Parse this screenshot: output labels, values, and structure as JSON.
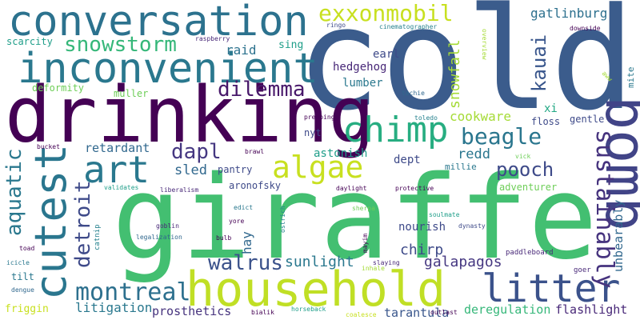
{
  "palette": {
    "dark_purple": "#440154",
    "indigo": "#3e4a89",
    "blue": "#31688e",
    "teal": "#26828e",
    "sea": "#1f9e89",
    "green": "#35b779",
    "light_green": "#6ece58",
    "lime": "#b5de2b",
    "background": "#ffffff"
  },
  "words": [
    {
      "text": "cold",
      "weight": 1.0,
      "color": "#3b5c8c"
    },
    {
      "text": "giraffe",
      "weight": 0.98,
      "color": "#43bf71"
    },
    {
      "text": "drinking",
      "weight": 0.82,
      "color": "#440154"
    },
    {
      "text": "household",
      "weight": 0.62,
      "color": "#c0df25"
    },
    {
      "text": "conversation",
      "weight": 0.6,
      "color": "#2c728e"
    },
    {
      "text": "bomb",
      "weight": 0.6,
      "color": "#414487"
    },
    {
      "text": "inconvenient",
      "weight": 0.55,
      "color": "#2a788e"
    },
    {
      "text": "cutest",
      "weight": 0.55,
      "color": "#2a768e"
    },
    {
      "text": "litter",
      "weight": 0.5,
      "color": "#3b528b"
    },
    {
      "text": "chimp",
      "weight": 0.46,
      "color": "#27ad81"
    },
    {
      "text": "art",
      "weight": 0.45,
      "color": "#2a788e"
    },
    {
      "text": "algae",
      "weight": 0.4,
      "color": "#c8e020"
    },
    {
      "text": "exxonmobil",
      "weight": 0.32,
      "color": "#c8e020"
    },
    {
      "text": "sustainably",
      "weight": 0.33,
      "color": "#46337e"
    },
    {
      "text": "montreal",
      "weight": 0.33,
      "color": "#2d708e"
    },
    {
      "text": "snowstorm",
      "weight": 0.28,
      "color": "#35b779"
    },
    {
      "text": "dilemma",
      "weight": 0.28,
      "color": "#48186a"
    },
    {
      "text": "beagle",
      "weight": 0.28,
      "color": "#2a768e"
    },
    {
      "text": "detroit",
      "weight": 0.28,
      "color": "#3e4a89"
    },
    {
      "text": "aquatic",
      "weight": 0.26,
      "color": "#2a788e"
    },
    {
      "text": "walrus",
      "weight": 0.26,
      "color": "#3b528b"
    },
    {
      "text": "kauai",
      "weight": 0.25,
      "color": "#39568c"
    },
    {
      "text": "pooch",
      "weight": 0.25,
      "color": "#3e4a89"
    },
    {
      "text": "dapl",
      "weight": 0.25,
      "color": "#453781"
    },
    {
      "text": "galapagos",
      "weight": 0.2,
      "color": "#453781"
    },
    {
      "text": "sunlight",
      "weight": 0.2,
      "color": "#2a788e"
    },
    {
      "text": "snowfall",
      "weight": 0.18,
      "color": "#a5db36"
    },
    {
      "text": "gatlinburg",
      "weight": 0.17,
      "color": "#2d708e"
    },
    {
      "text": "hay",
      "weight": 0.17,
      "color": "#31688e"
    },
    {
      "text": "chirp",
      "weight": 0.17,
      "color": "#3e4a89"
    },
    {
      "text": "sled",
      "weight": 0.17,
      "color": "#31688e"
    },
    {
      "text": "redd",
      "weight": 0.17,
      "color": "#2a768e"
    },
    {
      "text": "unbearably",
      "weight": 0.16,
      "color": "#31688e"
    },
    {
      "text": "litigation",
      "weight": 0.16,
      "color": "#2a788e"
    },
    {
      "text": "cookware",
      "weight": 0.16,
      "color": "#a5db36"
    },
    {
      "text": "flashlight",
      "weight": 0.16,
      "color": "#482878"
    },
    {
      "text": "deregulation",
      "weight": 0.16,
      "color": "#35b779"
    },
    {
      "text": "tarantula",
      "weight": 0.16,
      "color": "#39568c"
    },
    {
      "text": "prosthetics",
      "weight": 0.16,
      "color": "#46337e"
    },
    {
      "text": "raid",
      "weight": 0.16,
      "color": "#2c728e"
    },
    {
      "text": "retardant",
      "weight": 0.16,
      "color": "#31688e"
    },
    {
      "text": "earl",
      "weight": 0.15,
      "color": "#3e4a89"
    },
    {
      "text": "hedgehog",
      "weight": 0.15,
      "color": "#482878"
    },
    {
      "text": "lumber",
      "weight": 0.15,
      "color": "#2a788e"
    },
    {
      "text": "astonish",
      "weight": 0.15,
      "color": "#1f9e89"
    },
    {
      "text": "nourish",
      "weight": 0.15,
      "color": "#3e4a89"
    },
    {
      "text": "dept",
      "weight": 0.15,
      "color": "#3e4a89"
    },
    {
      "text": "xi",
      "weight": 0.15,
      "color": "#22a884"
    },
    {
      "text": "sing",
      "weight": 0.12,
      "color": "#1f9e89"
    },
    {
      "text": "friggin",
      "weight": 0.12,
      "color": "#c8e020"
    },
    {
      "text": "adventurer",
      "weight": 0.12,
      "color": "#6ece58"
    },
    {
      "text": "floss",
      "weight": 0.12,
      "color": "#3e4a89"
    },
    {
      "text": "gentle",
      "weight": 0.12,
      "color": "#3e4a89"
    },
    {
      "text": "mite",
      "weight": 0.1,
      "color": "#2a788e"
    },
    {
      "text": "aronofsky",
      "weight": 0.12,
      "color": "#3e4a89"
    },
    {
      "text": "nyt",
      "weight": 0.11,
      "color": "#3e4a89"
    },
    {
      "text": "millie",
      "weight": 0.11,
      "color": "#2a788e"
    },
    {
      "text": "muller",
      "weight": 0.11,
      "color": "#6ece58"
    },
    {
      "text": "deformity",
      "weight": 0.11,
      "color": "#6ece58"
    },
    {
      "text": "scarcity",
      "weight": 0.11,
      "color": "#1f9e89"
    },
    {
      "text": "pantry",
      "weight": 0.11,
      "color": "#3e4a89"
    },
    {
      "text": "tilt",
      "weight": 0.11,
      "color": "#2a788e"
    },
    {
      "text": "goer",
      "weight": 0.08,
      "color": "#482878"
    },
    {
      "text": "paddleboard",
      "weight": 0.08,
      "color": "#482878"
    },
    {
      "text": "aww",
      "weight": 0.07,
      "color": "#a5db36"
    },
    {
      "text": "downside",
      "weight": 0.07,
      "color": "#440154"
    },
    {
      "text": "overview",
      "weight": 0.07,
      "color": "#a5db36"
    },
    {
      "text": "techie",
      "weight": 0.07,
      "color": "#31688e"
    },
    {
      "text": "toledo",
      "weight": 0.07,
      "color": "#26828e"
    },
    {
      "text": "prepping",
      "weight": 0.07,
      "color": "#440154"
    },
    {
      "text": "ringo",
      "weight": 0.07,
      "color": "#3e4a89"
    },
    {
      "text": "cinematographer",
      "weight": 0.07,
      "color": "#26828e"
    },
    {
      "text": "raspberry",
      "weight": 0.07,
      "color": "#482878"
    },
    {
      "text": "bucket",
      "weight": 0.07,
      "color": "#440154"
    },
    {
      "text": "brawl",
      "weight": 0.07,
      "color": "#440154"
    },
    {
      "text": "validates",
      "weight": 0.07,
      "color": "#1f9e89"
    },
    {
      "text": "liberalism",
      "weight": 0.07,
      "color": "#482878"
    },
    {
      "text": "catnip",
      "weight": 0.07,
      "color": "#26828e"
    },
    {
      "text": "edict",
      "weight": 0.07,
      "color": "#2a788e"
    },
    {
      "text": "yore",
      "weight": 0.07,
      "color": "#440154"
    },
    {
      "text": "ostrich",
      "weight": 0.07,
      "color": "#26828e"
    },
    {
      "text": "daylight",
      "weight": 0.07,
      "color": "#440154"
    },
    {
      "text": "protective",
      "weight": 0.07,
      "color": "#440154"
    },
    {
      "text": "sherpa",
      "weight": 0.07,
      "color": "#6ece58"
    },
    {
      "text": "vick",
      "weight": 0.07,
      "color": "#6ece58"
    },
    {
      "text": "soulmate",
      "weight": 0.07,
      "color": "#1f9e89"
    },
    {
      "text": "dynasty",
      "weight": 0.07,
      "color": "#3e4a89"
    },
    {
      "text": "goblin",
      "weight": 0.07,
      "color": "#482878"
    },
    {
      "text": "legalization",
      "weight": 0.07,
      "color": "#31688e"
    },
    {
      "text": "bulb",
      "weight": 0.07,
      "color": "#440154"
    },
    {
      "text": "mayim",
      "weight": 0.07,
      "color": "#440154"
    },
    {
      "text": "toad",
      "weight": 0.07,
      "color": "#440154"
    },
    {
      "text": "icicle",
      "weight": 0.07,
      "color": "#2a788e"
    },
    {
      "text": "dengue",
      "weight": 0.07,
      "color": "#31688e"
    },
    {
      "text": "slaying",
      "weight": 0.07,
      "color": "#482878"
    },
    {
      "text": "inhale",
      "weight": 0.07,
      "color": "#a5db36"
    },
    {
      "text": "bialik",
      "weight": 0.07,
      "color": "#440154"
    },
    {
      "text": "horseback",
      "weight": 0.07,
      "color": "#1f9e89"
    },
    {
      "text": "coalesce",
      "weight": 0.07,
      "color": "#c8e020"
    },
    {
      "text": "outlast",
      "weight": 0.07,
      "color": "#440154"
    }
  ]
}
